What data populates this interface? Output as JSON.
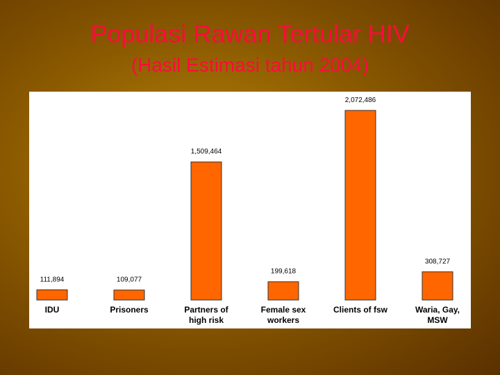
{
  "chart_data": {
    "type": "bar",
    "title": "Populasi Rawan Tertular HIV",
    "subtitle": "(Hasil Estimasi tahun 2004)",
    "categories": [
      "IDU",
      "Prisoners",
      "Partners of high risk",
      "Female sex workers",
      "Clients of fsw",
      "Waria, Gay, MSW"
    ],
    "values": [
      111894,
      109077,
      1509464,
      199618,
      2072486,
      308727
    ],
    "value_labels": [
      "111,894",
      "109,077",
      "1,509,464",
      "199,618",
      "2,072,486",
      "308,727"
    ],
    "color": "#ff6600"
  }
}
